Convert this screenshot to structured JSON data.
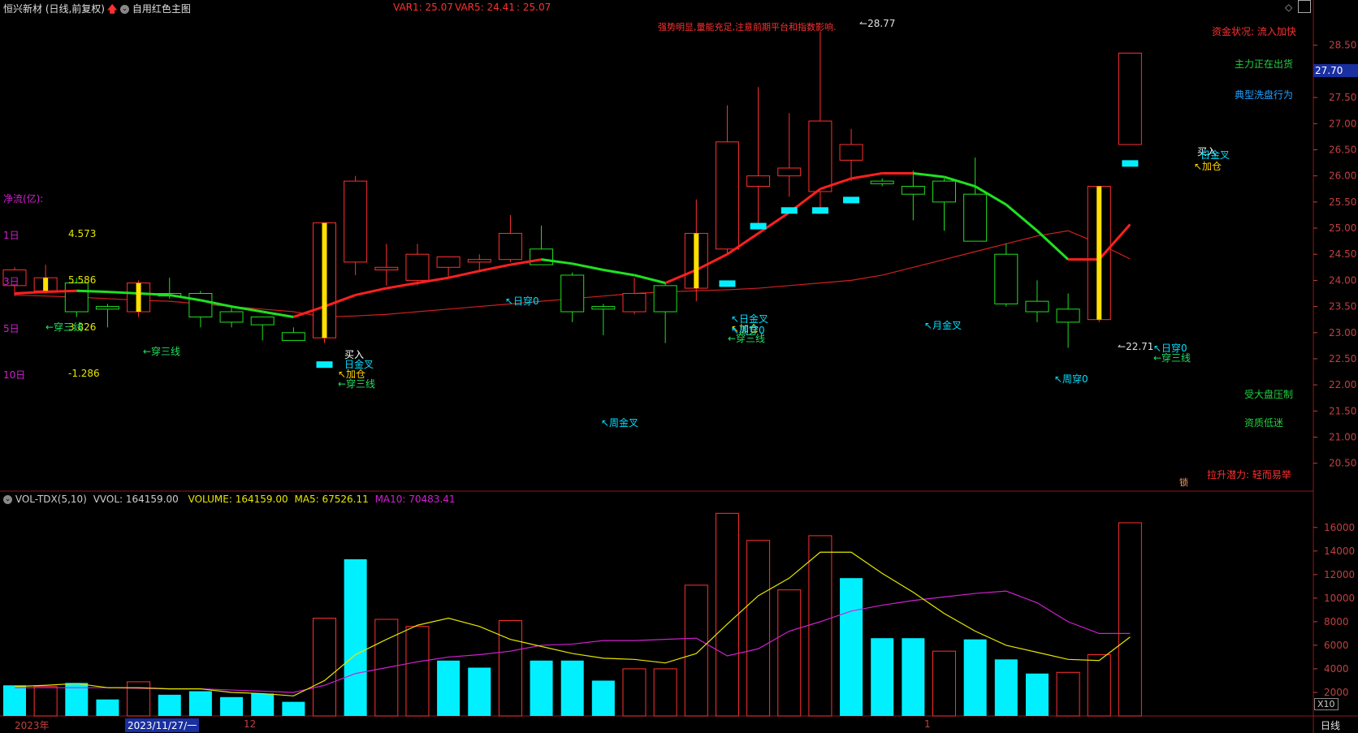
{
  "header": {
    "stock_title": "恒兴新材 (日线,前复权)",
    "theme_label": "自用红色主图",
    "var1": "VAR1: 25.07",
    "var5": "VAR5: 24.41",
    "var_other": ": 25.07",
    "trend_note": "强势明显,量能充足,注意前期平台和指数影响."
  },
  "left_panel": {
    "title": "净流(亿):",
    "rows": [
      {
        "label": "1日",
        "value": "4.573"
      },
      {
        "label": "3日",
        "value": "5.586"
      },
      {
        "label": "5日",
        "value": "3.826"
      },
      {
        "label": "10日",
        "value": "-1.286"
      }
    ]
  },
  "right_notes": {
    "fund_status": "资金状况: 流入加快",
    "main_force": "主力正在出货",
    "wash": "典型洗盘行为",
    "market_pressure": "受大盘压制",
    "fund_low": "资质低迷",
    "lift_potential": "拉升潜力: 轻而易举",
    "lock_label": "锁"
  },
  "price_axis": {
    "ticks": [
      "28.50",
      "28.00",
      "27.50",
      "27.00",
      "26.50",
      "26.00",
      "25.50",
      "25.00",
      "24.50",
      "24.00",
      "23.50",
      "23.00",
      "22.50",
      "22.00",
      "21.50",
      "21.00",
      "20.50"
    ],
    "current_price": "27.70"
  },
  "annotations": {
    "high": "28.77",
    "low": "22.71",
    "signals": [
      {
        "text": "←穿三线",
        "color": "#20e060"
      },
      {
        "text": "←穿三线",
        "color": "#20e060"
      },
      {
        "text": "买入",
        "color": "#ffffff"
      },
      {
        "text": "日金叉",
        "color": "#00e0ff"
      },
      {
        "text": "↖加仓",
        "color": "#ffd000"
      },
      {
        "text": "←穿三线",
        "color": "#20e060"
      },
      {
        "text": "↖日穿0",
        "color": "#00e0ff"
      },
      {
        "text": "↖周金叉",
        "color": "#00e0ff"
      },
      {
        "text": "↖日金叉",
        "color": "#00e0ff"
      },
      {
        "text": "↖加仓",
        "color": "#ffd000"
      },
      {
        "text": "↖周穿0",
        "color": "#00e0ff"
      },
      {
        "text": "←穿三线",
        "color": "#20e060"
      },
      {
        "text": "↖月金叉",
        "color": "#00e0ff"
      },
      {
        "text": "↖周穿0",
        "color": "#00e0ff"
      },
      {
        "text": "↖日穿0",
        "color": "#00e0ff"
      },
      {
        "text": "←穿三线",
        "color": "#20e060"
      },
      {
        "text": "买入",
        "color": "#ffffff"
      },
      {
        "text": "日金叉",
        "color": "#00e0ff"
      },
      {
        "text": "↖加仓",
        "color": "#ffd000"
      }
    ]
  },
  "volume_panel": {
    "indicator": "VOL-TDX(5,10)",
    "vvol": "VVOL: 164159.00",
    "volume": "VOLUME: 164159.00",
    "ma5": "MA5: 67526.11",
    "ma10": "MA10: 70483.41",
    "ticks": [
      "16000",
      "14000",
      "12000",
      "10000",
      "8000",
      "6000",
      "4000",
      "2000"
    ],
    "unit": "X10"
  },
  "date_axis": {
    "year_label": "2023年",
    "cursor_date": "2023/11/27/一",
    "month_12": "12",
    "month_1": "1",
    "period": "日线"
  },
  "colors": {
    "up": "#ff3030",
    "down": "#20e020",
    "volume_down": "#00f0ff",
    "ma5_vol": "#e6e600",
    "ma10_vol": "#d020d0",
    "ma_up": "#ff2020",
    "ma_down": "#20e020"
  },
  "chart_data": {
    "type": "candlestick",
    "price_ylim": [
      20.2,
      28.9
    ],
    "candles": [
      {
        "o": 23.9,
        "h": 24.25,
        "l": 23.7,
        "c": 24.2,
        "up": true
      },
      {
        "o": 23.8,
        "h": 24.3,
        "l": 23.75,
        "c": 24.05,
        "up": true
      },
      {
        "o": 23.95,
        "h": 24.05,
        "l": 23.3,
        "c": 23.4,
        "up": false
      },
      {
        "o": 23.5,
        "h": 23.55,
        "l": 23.1,
        "c": 23.45,
        "up": false
      },
      {
        "o": 23.4,
        "h": 24.0,
        "l": 23.3,
        "c": 23.95,
        "up": true
      },
      {
        "o": 23.75,
        "h": 24.05,
        "l": 23.65,
        "c": 23.7,
        "up": false
      },
      {
        "o": 23.75,
        "h": 23.8,
        "l": 23.1,
        "c": 23.3,
        "up": false
      },
      {
        "o": 23.4,
        "h": 23.5,
        "l": 23.1,
        "c": 23.2,
        "up": false
      },
      {
        "o": 23.3,
        "h": 23.3,
        "l": 22.85,
        "c": 23.15,
        "up": false
      },
      {
        "o": 23.0,
        "h": 23.1,
        "l": 22.85,
        "c": 22.85,
        "up": false
      },
      {
        "o": 22.9,
        "h": 25.1,
        "l": 22.8,
        "c": 25.1,
        "up": true
      },
      {
        "o": 24.35,
        "h": 26.0,
        "l": 24.1,
        "c": 25.9,
        "up": true
      },
      {
        "o": 24.2,
        "h": 24.7,
        "l": 23.9,
        "c": 24.25,
        "up": true
      },
      {
        "o": 24.0,
        "h": 24.7,
        "l": 23.9,
        "c": 24.5,
        "up": true
      },
      {
        "o": 24.25,
        "h": 24.45,
        "l": 24.05,
        "c": 24.45,
        "up": true
      },
      {
        "o": 24.35,
        "h": 24.5,
        "l": 24.15,
        "c": 24.4,
        "up": true
      },
      {
        "o": 24.4,
        "h": 25.25,
        "l": 24.35,
        "c": 24.9,
        "up": true
      },
      {
        "o": 24.6,
        "h": 25.05,
        "l": 24.3,
        "c": 24.3,
        "up": false
      },
      {
        "o": 24.1,
        "h": 24.15,
        "l": 23.2,
        "c": 23.4,
        "up": false
      },
      {
        "o": 23.5,
        "h": 23.55,
        "l": 22.95,
        "c": 23.45,
        "up": false
      },
      {
        "o": 23.4,
        "h": 24.05,
        "l": 23.35,
        "c": 23.75,
        "up": true
      },
      {
        "o": 23.9,
        "h": 23.95,
        "l": 22.8,
        "c": 23.4,
        "up": false
      },
      {
        "o": 23.85,
        "h": 25.55,
        "l": 23.6,
        "c": 24.9,
        "up": true
      },
      {
        "o": 24.6,
        "h": 27.35,
        "l": 24.5,
        "c": 26.65,
        "up": true
      },
      {
        "o": 25.8,
        "h": 27.7,
        "l": 25.1,
        "c": 26.0,
        "up": true
      },
      {
        "o": 26.0,
        "h": 27.2,
        "l": 25.6,
        "c": 26.15,
        "up": true
      },
      {
        "o": 25.7,
        "h": 28.77,
        "l": 25.3,
        "c": 27.05,
        "up": true
      },
      {
        "o": 26.3,
        "h": 26.9,
        "l": 25.9,
        "c": 26.6,
        "up": true
      },
      {
        "o": 25.9,
        "h": 25.95,
        "l": 25.8,
        "c": 25.85,
        "up": false
      },
      {
        "o": 25.8,
        "h": 26.1,
        "l": 25.15,
        "c": 25.65,
        "up": false
      },
      {
        "o": 25.9,
        "h": 25.95,
        "l": 24.95,
        "c": 25.5,
        "up": false
      },
      {
        "o": 25.65,
        "h": 26.35,
        "l": 24.75,
        "c": 24.75,
        "up": false
      },
      {
        "o": 24.5,
        "h": 24.7,
        "l": 23.5,
        "c": 23.55,
        "up": false
      },
      {
        "o": 23.6,
        "h": 24.0,
        "l": 23.2,
        "c": 23.4,
        "up": false
      },
      {
        "o": 23.45,
        "h": 23.75,
        "l": 22.71,
        "c": 23.2,
        "up": false
      },
      {
        "o": 23.25,
        "h": 25.8,
        "l": 23.2,
        "c": 25.8,
        "up": true
      },
      {
        "o": 26.6,
        "h": 28.35,
        "l": 26.6,
        "c": 28.35,
        "up": true
      }
    ],
    "ma_line": [
      23.75,
      23.78,
      23.8,
      23.78,
      23.75,
      23.72,
      23.62,
      23.5,
      23.4,
      23.3,
      23.5,
      23.72,
      23.85,
      23.95,
      24.05,
      24.18,
      24.3,
      24.4,
      24.32,
      24.2,
      24.1,
      23.95,
      24.2,
      24.5,
      24.9,
      25.3,
      25.75,
      25.95,
      26.05,
      26.05,
      25.98,
      25.8,
      25.45,
      24.95,
      24.4,
      24.4,
      25.07
    ],
    "ma_slow": [
      23.72,
      23.7,
      23.68,
      23.65,
      23.62,
      23.6,
      23.55,
      23.5,
      23.45,
      23.4,
      23.3,
      23.32,
      23.35,
      23.4,
      23.45,
      23.5,
      23.55,
      23.6,
      23.65,
      23.7,
      23.75,
      23.78,
      23.8,
      23.82,
      23.85,
      23.9,
      23.95,
      24.0,
      24.1,
      24.25,
      24.4,
      24.55,
      24.7,
      24.85,
      24.95,
      24.7,
      24.41
    ],
    "volume": {
      "values": [
        2600,
        2500,
        2800,
        1400,
        2900,
        1800,
        2100,
        1600,
        1900,
        1200,
        8300,
        13300,
        8200,
        7600,
        4700,
        4100,
        8100,
        4700,
        4700,
        3000,
        4000,
        4000,
        11100,
        17200,
        14900,
        10700,
        15300,
        11700,
        6600,
        6600,
        5500,
        6500,
        4800,
        3600,
        3700,
        5200,
        16400
      ],
      "up": [
        false,
        true,
        false,
        false,
        true,
        false,
        false,
        false,
        false,
        false,
        true,
        false,
        true,
        true,
        false,
        false,
        true,
        false,
        false,
        false,
        true,
        true,
        true,
        true,
        true,
        true,
        true,
        false,
        false,
        false,
        true,
        false,
        false,
        false,
        true,
        true,
        true
      ],
      "ma5": [
        2500,
        2600,
        2750,
        2400,
        2400,
        2300,
        2300,
        2000,
        1900,
        1700,
        3000,
        5200,
        6500,
        7700,
        8300,
        7600,
        6500,
        5900,
        5300,
        4900,
        4800,
        4500,
        5300,
        7800,
        10200,
        11700,
        13900,
        13900,
        12100,
        10500,
        8700,
        7200,
        6000,
        5400,
        4800,
        4700,
        6700
      ],
      "ma10": [
        2400,
        2400,
        2400,
        2400,
        2350,
        2300,
        2300,
        2200,
        2100,
        2000,
        2600,
        3600,
        4100,
        4600,
        5000,
        5200,
        5500,
        6000,
        6100,
        6400,
        6400,
        6500,
        6600,
        5100,
        5700,
        7200,
        8000,
        8900,
        9400,
        9800,
        10100,
        10400,
        10600,
        9600,
        8000,
        7000,
        7000
      ],
      "ylim": [
        0,
        17500
      ]
    }
  }
}
